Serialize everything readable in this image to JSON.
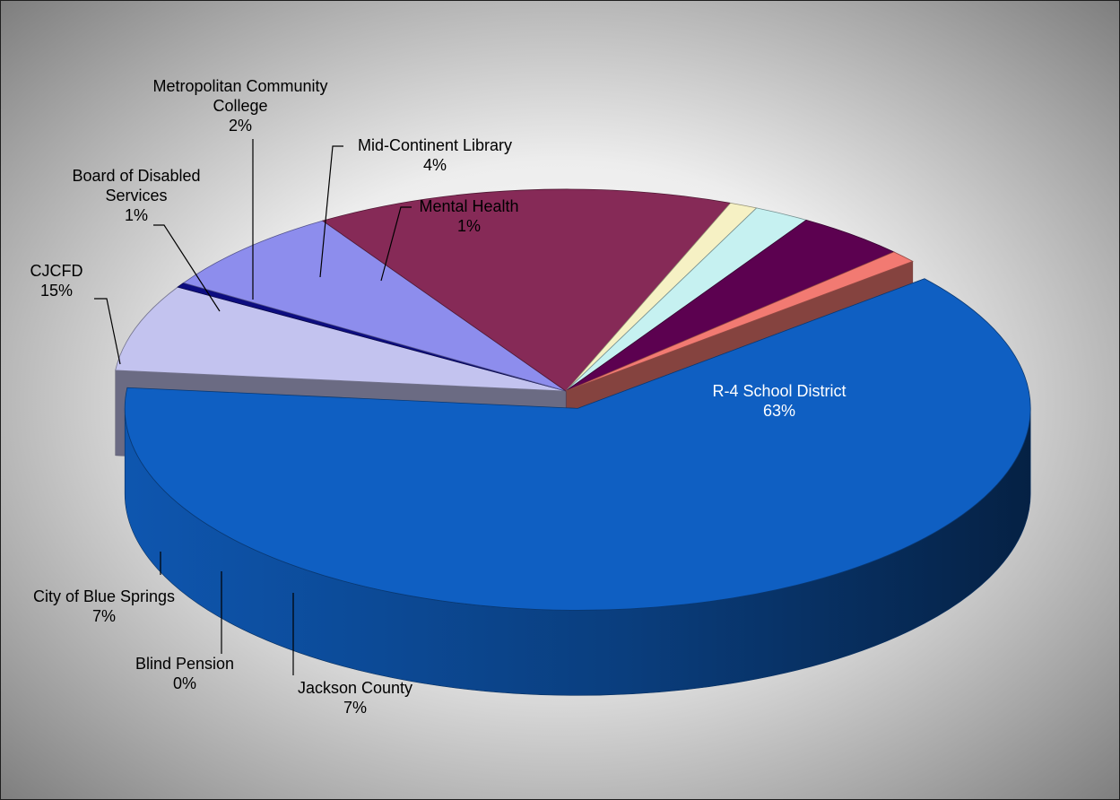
{
  "chart_data": {
    "type": "pie",
    "title": "",
    "style": "3d-exploded",
    "slices": [
      {
        "label": "R-4 School District",
        "percent": "63%",
        "value": 63,
        "color": "#0f5fc2"
      },
      {
        "label": "Jackson County",
        "percent": "7%",
        "value": 7,
        "color": "#c3c3ef"
      },
      {
        "label": "Blind Pension",
        "percent": "0%",
        "value": 0.4,
        "color": "#0d0d80"
      },
      {
        "label": "City of Blue Springs",
        "percent": "7%",
        "value": 7,
        "color": "#8d8ded"
      },
      {
        "label": "CJCFD",
        "percent": "15%",
        "value": 15,
        "color": "#862a57"
      },
      {
        "label": "Board of Disabled Services",
        "label_lines": [
          "Board of Disabled",
          "Services"
        ],
        "percent": "1%",
        "value": 1,
        "color": "#f6f1c4"
      },
      {
        "label": "Metropolitan Community College",
        "label_lines": [
          "Metropolitan Community",
          "College"
        ],
        "percent": "2%",
        "value": 2,
        "color": "#c6f1f1"
      },
      {
        "label": "Mid-Continent Library",
        "percent": "4%",
        "value": 4,
        "color": "#5c0150"
      },
      {
        "label": "Mental Health",
        "percent": "1%",
        "value": 1,
        "color": "#f27a72"
      }
    ]
  }
}
